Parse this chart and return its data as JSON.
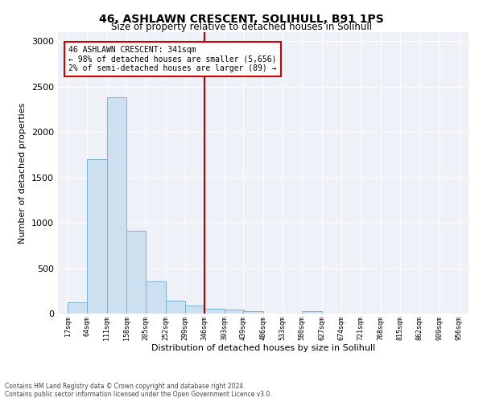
{
  "title": "46, ASHLAWN CRESCENT, SOLIHULL, B91 1PS",
  "subtitle": "Size of property relative to detached houses in Solihull",
  "xlabel": "Distribution of detached houses by size in Solihull",
  "ylabel": "Number of detached properties",
  "bar_edges": [
    17,
    64,
    111,
    158,
    205,
    252,
    299,
    346,
    393,
    439,
    486,
    533,
    580,
    627,
    674,
    721,
    768,
    815,
    862,
    909,
    956
  ],
  "bar_heights": [
    120,
    1700,
    2380,
    910,
    350,
    140,
    90,
    55,
    40,
    25,
    0,
    0,
    30,
    0,
    0,
    0,
    0,
    0,
    0,
    0
  ],
  "bar_color": "#cce0f0",
  "bar_edge_color": "#7ab3d4",
  "vline_x": 346,
  "vline_color": "#aa0000",
  "annotation_text": "46 ASHLAWN CRESCENT: 341sqm\n← 98% of detached houses are smaller (5,656)\n2% of semi-detached houses are larger (89) →",
  "annotation_box_color": "#cc0000",
  "annotation_text_color": "#000000",
  "background_color": "#eef2f8",
  "grid_color": "#ffffff",
  "ylim": [
    0,
    3100
  ],
  "yticks": [
    0,
    500,
    1000,
    1500,
    2000,
    2500,
    3000
  ],
  "footer_line1": "Contains HM Land Registry data © Crown copyright and database right 2024.",
  "footer_line2": "Contains public sector information licensed under the Open Government Licence v3.0."
}
